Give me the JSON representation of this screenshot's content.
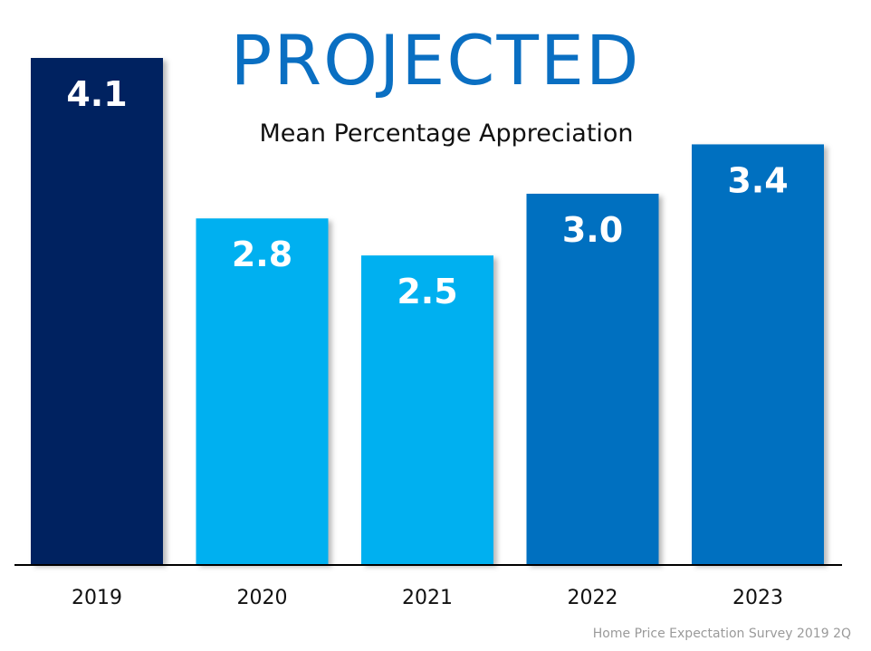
{
  "chart_data": {
    "type": "bar",
    "title": "PROJECTED",
    "subtitle": "Mean Percentage Appreciation",
    "categories": [
      "2019",
      "2020",
      "2021",
      "2022",
      "2023"
    ],
    "values": [
      4.1,
      2.8,
      2.5,
      3.0,
      3.4
    ],
    "value_labels": [
      "4.1",
      "2.8",
      "2.5",
      "3.0",
      "3.4"
    ],
    "colors": [
      "#002060",
      "#00b0f0",
      "#00b0f0",
      "#0070c0",
      "#0070c0"
    ],
    "ylim": [
      0,
      4.1
    ],
    "grid": false,
    "legend": "none",
    "source": "Home Price Expectation Survey 2019 2Q"
  }
}
